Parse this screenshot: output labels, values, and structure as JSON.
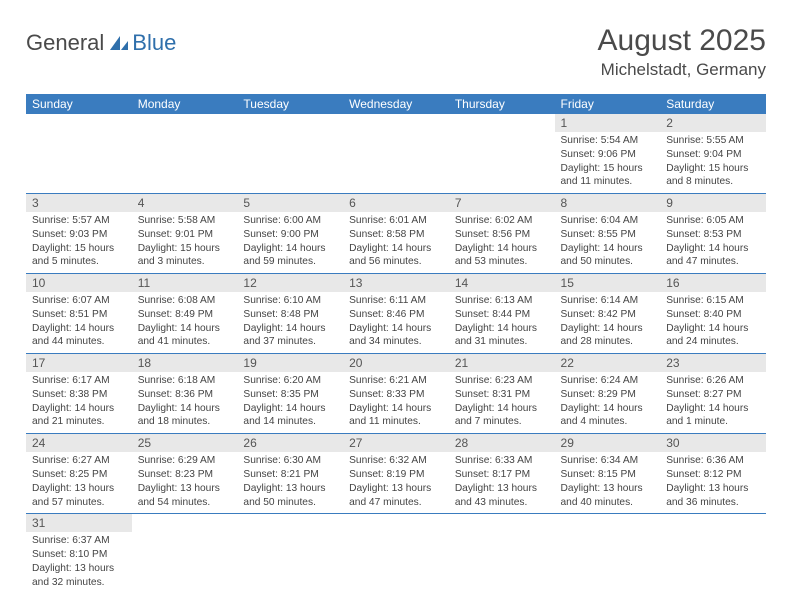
{
  "logo": {
    "text1": "General",
    "text2": "Blue"
  },
  "title": "August 2025",
  "location": "Michelstadt, Germany",
  "colors": {
    "header_bg": "#3a7cbf",
    "header_text": "#ffffff",
    "daynum_bg": "#e8e8e8",
    "rule": "#3a7cbf",
    "logo_blue": "#2f6fab",
    "text": "#4a4a4a"
  },
  "weekdays": [
    "Sunday",
    "Monday",
    "Tuesday",
    "Wednesday",
    "Thursday",
    "Friday",
    "Saturday"
  ],
  "weeks": [
    [
      {
        "n": "",
        "sr": "",
        "ss": "",
        "dl": ""
      },
      {
        "n": "",
        "sr": "",
        "ss": "",
        "dl": ""
      },
      {
        "n": "",
        "sr": "",
        "ss": "",
        "dl": ""
      },
      {
        "n": "",
        "sr": "",
        "ss": "",
        "dl": ""
      },
      {
        "n": "",
        "sr": "",
        "ss": "",
        "dl": ""
      },
      {
        "n": "1",
        "sr": "Sunrise: 5:54 AM",
        "ss": "Sunset: 9:06 PM",
        "dl": "Daylight: 15 hours and 11 minutes."
      },
      {
        "n": "2",
        "sr": "Sunrise: 5:55 AM",
        "ss": "Sunset: 9:04 PM",
        "dl": "Daylight: 15 hours and 8 minutes."
      }
    ],
    [
      {
        "n": "3",
        "sr": "Sunrise: 5:57 AM",
        "ss": "Sunset: 9:03 PM",
        "dl": "Daylight: 15 hours and 5 minutes."
      },
      {
        "n": "4",
        "sr": "Sunrise: 5:58 AM",
        "ss": "Sunset: 9:01 PM",
        "dl": "Daylight: 15 hours and 3 minutes."
      },
      {
        "n": "5",
        "sr": "Sunrise: 6:00 AM",
        "ss": "Sunset: 9:00 PM",
        "dl": "Daylight: 14 hours and 59 minutes."
      },
      {
        "n": "6",
        "sr": "Sunrise: 6:01 AM",
        "ss": "Sunset: 8:58 PM",
        "dl": "Daylight: 14 hours and 56 minutes."
      },
      {
        "n": "7",
        "sr": "Sunrise: 6:02 AM",
        "ss": "Sunset: 8:56 PM",
        "dl": "Daylight: 14 hours and 53 minutes."
      },
      {
        "n": "8",
        "sr": "Sunrise: 6:04 AM",
        "ss": "Sunset: 8:55 PM",
        "dl": "Daylight: 14 hours and 50 minutes."
      },
      {
        "n": "9",
        "sr": "Sunrise: 6:05 AM",
        "ss": "Sunset: 8:53 PM",
        "dl": "Daylight: 14 hours and 47 minutes."
      }
    ],
    [
      {
        "n": "10",
        "sr": "Sunrise: 6:07 AM",
        "ss": "Sunset: 8:51 PM",
        "dl": "Daylight: 14 hours and 44 minutes."
      },
      {
        "n": "11",
        "sr": "Sunrise: 6:08 AM",
        "ss": "Sunset: 8:49 PM",
        "dl": "Daylight: 14 hours and 41 minutes."
      },
      {
        "n": "12",
        "sr": "Sunrise: 6:10 AM",
        "ss": "Sunset: 8:48 PM",
        "dl": "Daylight: 14 hours and 37 minutes."
      },
      {
        "n": "13",
        "sr": "Sunrise: 6:11 AM",
        "ss": "Sunset: 8:46 PM",
        "dl": "Daylight: 14 hours and 34 minutes."
      },
      {
        "n": "14",
        "sr": "Sunrise: 6:13 AM",
        "ss": "Sunset: 8:44 PM",
        "dl": "Daylight: 14 hours and 31 minutes."
      },
      {
        "n": "15",
        "sr": "Sunrise: 6:14 AM",
        "ss": "Sunset: 8:42 PM",
        "dl": "Daylight: 14 hours and 28 minutes."
      },
      {
        "n": "16",
        "sr": "Sunrise: 6:15 AM",
        "ss": "Sunset: 8:40 PM",
        "dl": "Daylight: 14 hours and 24 minutes."
      }
    ],
    [
      {
        "n": "17",
        "sr": "Sunrise: 6:17 AM",
        "ss": "Sunset: 8:38 PM",
        "dl": "Daylight: 14 hours and 21 minutes."
      },
      {
        "n": "18",
        "sr": "Sunrise: 6:18 AM",
        "ss": "Sunset: 8:36 PM",
        "dl": "Daylight: 14 hours and 18 minutes."
      },
      {
        "n": "19",
        "sr": "Sunrise: 6:20 AM",
        "ss": "Sunset: 8:35 PM",
        "dl": "Daylight: 14 hours and 14 minutes."
      },
      {
        "n": "20",
        "sr": "Sunrise: 6:21 AM",
        "ss": "Sunset: 8:33 PM",
        "dl": "Daylight: 14 hours and 11 minutes."
      },
      {
        "n": "21",
        "sr": "Sunrise: 6:23 AM",
        "ss": "Sunset: 8:31 PM",
        "dl": "Daylight: 14 hours and 7 minutes."
      },
      {
        "n": "22",
        "sr": "Sunrise: 6:24 AM",
        "ss": "Sunset: 8:29 PM",
        "dl": "Daylight: 14 hours and 4 minutes."
      },
      {
        "n": "23",
        "sr": "Sunrise: 6:26 AM",
        "ss": "Sunset: 8:27 PM",
        "dl": "Daylight: 14 hours and 1 minute."
      }
    ],
    [
      {
        "n": "24",
        "sr": "Sunrise: 6:27 AM",
        "ss": "Sunset: 8:25 PM",
        "dl": "Daylight: 13 hours and 57 minutes."
      },
      {
        "n": "25",
        "sr": "Sunrise: 6:29 AM",
        "ss": "Sunset: 8:23 PM",
        "dl": "Daylight: 13 hours and 54 minutes."
      },
      {
        "n": "26",
        "sr": "Sunrise: 6:30 AM",
        "ss": "Sunset: 8:21 PM",
        "dl": "Daylight: 13 hours and 50 minutes."
      },
      {
        "n": "27",
        "sr": "Sunrise: 6:32 AM",
        "ss": "Sunset: 8:19 PM",
        "dl": "Daylight: 13 hours and 47 minutes."
      },
      {
        "n": "28",
        "sr": "Sunrise: 6:33 AM",
        "ss": "Sunset: 8:17 PM",
        "dl": "Daylight: 13 hours and 43 minutes."
      },
      {
        "n": "29",
        "sr": "Sunrise: 6:34 AM",
        "ss": "Sunset: 8:15 PM",
        "dl": "Daylight: 13 hours and 40 minutes."
      },
      {
        "n": "30",
        "sr": "Sunrise: 6:36 AM",
        "ss": "Sunset: 8:12 PM",
        "dl": "Daylight: 13 hours and 36 minutes."
      }
    ],
    [
      {
        "n": "31",
        "sr": "Sunrise: 6:37 AM",
        "ss": "Sunset: 8:10 PM",
        "dl": "Daylight: 13 hours and 32 minutes."
      },
      {
        "n": "",
        "sr": "",
        "ss": "",
        "dl": ""
      },
      {
        "n": "",
        "sr": "",
        "ss": "",
        "dl": ""
      },
      {
        "n": "",
        "sr": "",
        "ss": "",
        "dl": ""
      },
      {
        "n": "",
        "sr": "",
        "ss": "",
        "dl": ""
      },
      {
        "n": "",
        "sr": "",
        "ss": "",
        "dl": ""
      },
      {
        "n": "",
        "sr": "",
        "ss": "",
        "dl": ""
      }
    ]
  ]
}
